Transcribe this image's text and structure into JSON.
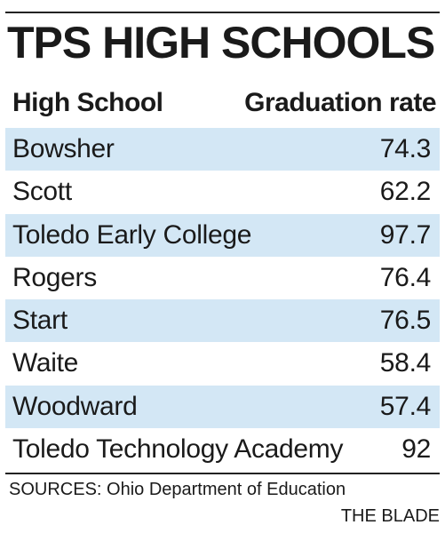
{
  "title": "TPS HIGH SCHOOLS",
  "headers": {
    "school": "High School",
    "rate": "Graduation rate"
  },
  "chart_data": {
    "type": "table",
    "title": "TPS HIGH SCHOOLS",
    "columns": [
      "High School",
      "Graduation rate"
    ],
    "rows": [
      {
        "school": "Bowsher",
        "rate": "74.3"
      },
      {
        "school": "Scott",
        "rate": "62.2"
      },
      {
        "school": "Toledo Early College",
        "rate": "97.7"
      },
      {
        "school": "Rogers",
        "rate": "76.4"
      },
      {
        "school": "Start",
        "rate": "76.5"
      },
      {
        "school": "Waite",
        "rate": "58.4"
      },
      {
        "school": "Woodward",
        "rate": "57.4"
      },
      {
        "school": "Toledo Technology Academy",
        "rate": "92"
      }
    ]
  },
  "source": "SOURCES: Ohio Department of Education",
  "credit": "THE BLADE",
  "colors": {
    "row_shade": "#d3e7f5",
    "text": "#1a1a1a",
    "rule": "#222222"
  }
}
